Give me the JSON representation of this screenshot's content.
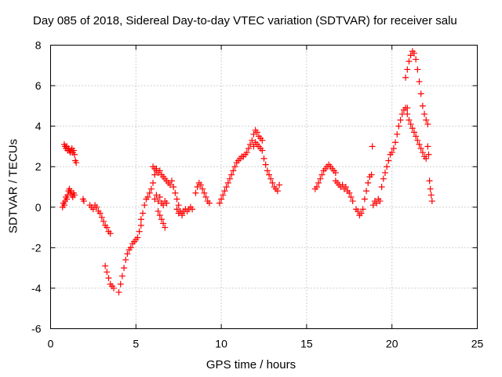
{
  "chart_data": {
    "type": "scatter",
    "title": "Day 085 of 2018, Sidereal Day-to-day VTEC variation (SDTVAR) for receiver salu",
    "xlabel": "GPS time / hours",
    "ylabel": "SDTVAR / TECUs",
    "xlim": [
      0,
      25
    ],
    "ylim": [
      -6,
      8
    ],
    "xticks": [
      0,
      5,
      10,
      15,
      20,
      25
    ],
    "yticks": [
      -6,
      -4,
      -2,
      0,
      2,
      4,
      6,
      8
    ],
    "grid": true,
    "marker": "+",
    "series": [
      {
        "name": "SDTVAR",
        "color": "#ff0000",
        "x": [
          0.7,
          0.75,
          0.8,
          0.85,
          0.9,
          0.95,
          1.0,
          1.05,
          1.1,
          1.15,
          1.2,
          1.25,
          1.3,
          1.35,
          1.4,
          0.8,
          0.85,
          0.9,
          0.95,
          1.0,
          1.05,
          1.1,
          1.15,
          1.2,
          1.25,
          1.3,
          1.35,
          1.4,
          1.45,
          1.5,
          1.9,
          1.95,
          2.3,
          2.4,
          2.5,
          2.6,
          2.7,
          2.8,
          2.9,
          3.0,
          3.1,
          3.2,
          3.3,
          3.4,
          3.5,
          3.2,
          3.3,
          3.4,
          3.5,
          3.6,
          3.7,
          4.0,
          4.1,
          4.2,
          4.3,
          4.4,
          4.5,
          4.6,
          4.7,
          4.8,
          4.9,
          5.0,
          5.1,
          5.2,
          5.3,
          5.3,
          5.4,
          5.5,
          5.6,
          5.7,
          5.8,
          5.9,
          6.0,
          6.1,
          6.2,
          6.0,
          6.1,
          6.2,
          6.3,
          6.4,
          6.5,
          6.6,
          6.7,
          6.8,
          6.9,
          7.0,
          6.1,
          6.2,
          6.3,
          6.4,
          6.5,
          6.6,
          6.7,
          6.8,
          6.3,
          6.4,
          6.5,
          6.6,
          6.7,
          7.1,
          7.2,
          7.3,
          7.4,
          7.5,
          7.6,
          7.7,
          7.4,
          7.5,
          7.6,
          7.7,
          7.8,
          7.9,
          8.0,
          8.1,
          8.2,
          8.3,
          8.5,
          8.6,
          8.7,
          8.8,
          8.9,
          9.0,
          9.1,
          9.2,
          9.3,
          9.9,
          10.0,
          10.1,
          10.2,
          10.3,
          10.4,
          10.5,
          10.6,
          10.7,
          10.8,
          10.9,
          11.0,
          11.1,
          11.2,
          11.3,
          11.4,
          11.5,
          11.6,
          11.7,
          11.8,
          11.9,
          12.0,
          12.1,
          12.2,
          12.3,
          12.4,
          11.9,
          12.0,
          12.1,
          12.2,
          12.3,
          12.4,
          12.5,
          12.6,
          12.7,
          12.8,
          12.9,
          13.0,
          13.1,
          13.2,
          13.3,
          13.4,
          15.5,
          15.6,
          15.7,
          15.8,
          15.9,
          16.0,
          16.1,
          16.2,
          16.3,
          16.4,
          16.5,
          16.6,
          16.7,
          16.7,
          16.8,
          16.9,
          17.0,
          17.1,
          17.2,
          17.3,
          17.4,
          17.5,
          17.6,
          17.7,
          17.9,
          18.0,
          18.1,
          18.2,
          18.3,
          18.4,
          18.5,
          18.6,
          18.7,
          18.8,
          18.85,
          18.9,
          19.0,
          19.1,
          19.2,
          19.3,
          19.4,
          19.5,
          19.6,
          19.7,
          19.8,
          19.9,
          20.0,
          20.1,
          20.2,
          20.3,
          20.4,
          20.5,
          20.6,
          20.7,
          20.8,
          20.9,
          20.8,
          20.9,
          21.0,
          21.1,
          21.2,
          21.3,
          21.4,
          21.5,
          21.6,
          21.7,
          21.8,
          21.9,
          22.0,
          22.1,
          20.9,
          21.0,
          21.1,
          21.2,
          21.3,
          21.4,
          21.5,
          21.6,
          21.7,
          21.8,
          21.9,
          22.0,
          22.1,
          22.15,
          22.2,
          22.25,
          22.3,
          22.35
        ],
        "y": [
          0.0,
          0.2,
          0.1,
          0.3,
          0.5,
          0.4,
          0.6,
          0.8,
          0.9,
          0.7,
          0.8,
          0.6,
          0.5,
          0.7,
          0.6,
          3.1,
          3.0,
          2.9,
          3.0,
          2.8,
          2.9,
          2.8,
          2.7,
          2.8,
          2.9,
          2.7,
          2.8,
          2.6,
          2.3,
          2.2,
          0.4,
          0.3,
          0.1,
          0.0,
          -0.1,
          0.1,
          0.0,
          -0.2,
          -0.3,
          -0.5,
          -0.7,
          -0.9,
          -1.0,
          -1.2,
          -1.3,
          -2.9,
          -3.2,
          -3.5,
          -3.8,
          -3.9,
          -4.0,
          -4.2,
          -3.8,
          -3.4,
          -3.0,
          -2.6,
          -2.3,
          -2.1,
          -2.0,
          -1.8,
          -1.7,
          -1.6,
          -1.5,
          -1.2,
          -0.9,
          -0.6,
          -0.3,
          0.1,
          0.4,
          0.5,
          0.7,
          0.9,
          1.2,
          1.6,
          1.9,
          2.0,
          1.9,
          1.8,
          1.7,
          1.8,
          1.6,
          1.5,
          1.4,
          1.3,
          1.2,
          1.1,
          0.4,
          0.6,
          0.3,
          0.5,
          0.2,
          0.1,
          0.3,
          0.2,
          -0.2,
          -0.4,
          -0.6,
          -0.8,
          -1.0,
          1.3,
          1.0,
          0.7,
          0.4,
          0.1,
          -0.2,
          -0.4,
          -0.1,
          -0.3,
          -0.2,
          -0.3,
          -0.2,
          -0.1,
          -0.2,
          -0.1,
          0.0,
          -0.1,
          0.7,
          1.0,
          1.2,
          1.1,
          0.9,
          0.7,
          0.5,
          0.3,
          0.2,
          0.2,
          0.4,
          0.6,
          0.8,
          1.0,
          1.2,
          1.4,
          1.6,
          1.8,
          2.0,
          2.2,
          2.3,
          2.4,
          2.5,
          2.5,
          2.6,
          2.7,
          2.9,
          3.1,
          3.3,
          3.6,
          3.8,
          3.7,
          3.5,
          3.4,
          3.3,
          3.0,
          3.2,
          3.1,
          3.0,
          2.9,
          2.8,
          2.4,
          2.1,
          1.8,
          1.6,
          1.4,
          1.2,
          1.0,
          0.9,
          0.8,
          1.1,
          0.9,
          1.0,
          1.2,
          1.4,
          1.6,
          1.8,
          1.9,
          2.0,
          2.1,
          2.0,
          1.9,
          1.8,
          1.7,
          1.3,
          1.2,
          1.1,
          1.0,
          1.1,
          0.9,
          1.0,
          0.8,
          0.7,
          0.5,
          0.3,
          -0.1,
          -0.2,
          -0.4,
          -0.3,
          -0.1,
          0.4,
          0.8,
          1.2,
          1.5,
          1.6,
          3.0,
          0.1,
          0.3,
          0.2,
          0.4,
          0.3,
          1.0,
          1.4,
          1.7,
          2.0,
          2.3,
          2.6,
          2.7,
          2.9,
          3.2,
          3.6,
          4.0,
          4.3,
          4.6,
          4.8,
          4.9,
          4.9,
          6.4,
          6.8,
          7.2,
          7.5,
          7.7,
          7.6,
          7.3,
          6.8,
          6.2,
          5.6,
          5.0,
          4.6,
          4.3,
          4.1,
          4.6,
          4.3,
          4.1,
          3.9,
          3.7,
          3.5,
          3.3,
          3.1,
          2.9,
          2.7,
          2.5,
          2.4,
          3.0,
          2.6,
          1.3,
          0.9,
          0.6,
          0.3
        ]
      }
    ]
  }
}
